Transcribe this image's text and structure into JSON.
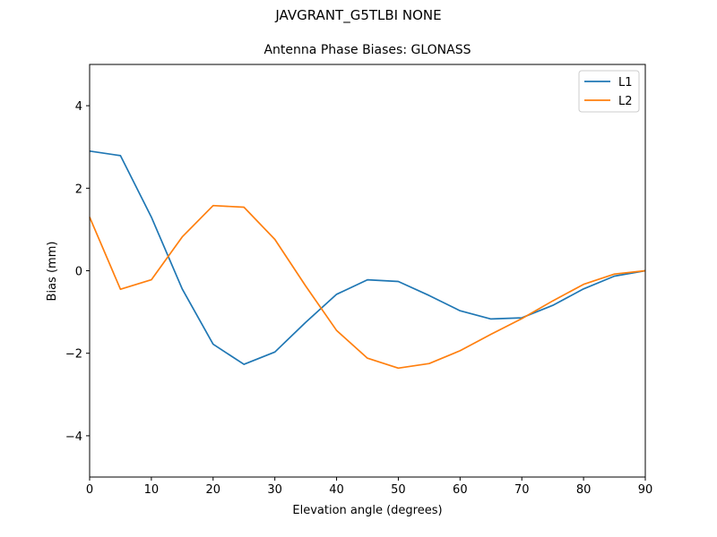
{
  "figure": {
    "suptitle": "JAVGRANT_G5TLBI NONE",
    "title": "Antenna Phase Biases: GLONASS"
  },
  "colors": {
    "L1": "#1f77b4",
    "L2": "#ff7f0e"
  },
  "chart_data": {
    "type": "line",
    "title": "Antenna Phase Biases: GLONASS",
    "suptitle": "JAVGRANT_G5TLBI NONE",
    "xlabel": "Elevation angle (degrees)",
    "ylabel": "Bias (mm)",
    "xlim": [
      0,
      90
    ],
    "ylim": [
      -5,
      5
    ],
    "xticks": [
      0,
      10,
      20,
      30,
      40,
      50,
      60,
      70,
      80,
      90
    ],
    "yticks": [
      -4,
      -2,
      0,
      2,
      4
    ],
    "ytick_labels": [
      "−4",
      "−2",
      "0",
      "2",
      "4"
    ],
    "grid": false,
    "legend_position": "upper right",
    "x": [
      0,
      5,
      10,
      15,
      20,
      25,
      30,
      35,
      40,
      45,
      50,
      55,
      60,
      65,
      70,
      75,
      80,
      85,
      90
    ],
    "series": [
      {
        "name": "L1",
        "color": "#1f77b4",
        "values": [
          2.9,
          2.79,
          1.3,
          -0.44,
          -1.78,
          -2.27,
          -1.97,
          -1.25,
          -0.57,
          -0.22,
          -0.26,
          -0.6,
          -0.97,
          -1.17,
          -1.14,
          -0.84,
          -0.44,
          -0.13,
          0.0
        ]
      },
      {
        "name": "L2",
        "color": "#ff7f0e",
        "values": [
          1.3,
          -0.45,
          -0.22,
          0.82,
          1.58,
          1.54,
          0.76,
          -0.37,
          -1.45,
          -2.12,
          -2.36,
          -2.25,
          -1.94,
          -1.54,
          -1.16,
          -0.73,
          -0.33,
          -0.08,
          0.0
        ]
      }
    ]
  }
}
